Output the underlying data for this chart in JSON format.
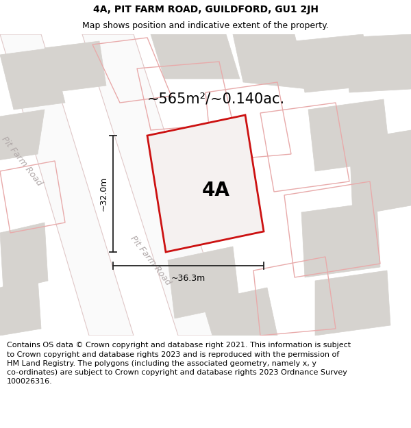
{
  "title": "4A, PIT FARM ROAD, GUILDFORD, GU1 2JH",
  "subtitle": "Map shows position and indicative extent of the property.",
  "area_text": "~565m²/~0.140ac.",
  "label_4A": "4A",
  "dim_height": "~32.0m",
  "dim_width": "~36.3m",
  "road_label": "Pit Farm Road",
  "footer_line1": "Contains OS data © Crown copyright and database right 2021. This information is subject",
  "footer_line2": "to Crown copyright and database rights 2023 and is reproduced with the permission of",
  "footer_line3": "HM Land Registry. The polygons (including the associated geometry, namely x, y",
  "footer_line4": "co-ordinates) are subject to Crown copyright and database rights 2023 Ordnance Survey",
  "footer_line5": "100026316.",
  "map_bg": "#eeebe7",
  "road_fill": "#fafafa",
  "road_edge": "#e0c8c8",
  "building_fill": "#d6d3cf",
  "building_edge": "#d6d3cf",
  "plot_edge_red": "#cc1111",
  "plot_fill": "#f5f1f0",
  "pink_edge": "#e8aaaa",
  "dim_color": "#222222",
  "road_text_color": "#b0a8a8",
  "title_fontsize": 10,
  "subtitle_fontsize": 9,
  "area_fontsize": 15,
  "label_fontsize": 20,
  "dim_fontsize": 9,
  "road_fontsize": 9,
  "footer_fontsize": 8
}
